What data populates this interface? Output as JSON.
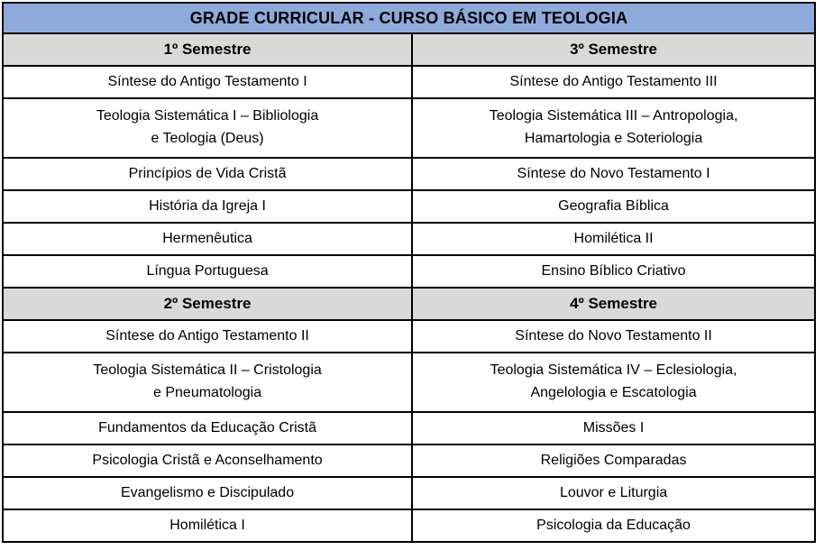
{
  "title": "GRADE CURRICULAR - CURSO BÁSICO EM TEOLOGIA",
  "colors": {
    "title_bg": "#8EAADB",
    "section_bg": "#D9D9D9",
    "cell_bg": "#FFFFFF",
    "border": "#000000",
    "text": "#000000"
  },
  "sections": [
    {
      "left_header": "1º Semestre",
      "right_header": "3º Semestre",
      "rows": [
        {
          "left": "Síntese do Antigo Testamento I",
          "right": "Síntese do Antigo Testamento III"
        },
        {
          "left": "Teologia Sistemática I – Bibliologia\ne Teologia (Deus)",
          "right": "Teologia Sistemática III – Antropologia,\nHamartologia e Soteriologia"
        },
        {
          "left": "Princípios de Vida Cristã",
          "right": "Síntese do Novo Testamento I"
        },
        {
          "left": "História da Igreja I",
          "right": "Geografia Bíblica"
        },
        {
          "left": "Hermenêutica",
          "right": "Homilética II"
        },
        {
          "left": "Língua Portuguesa",
          "right": "Ensino Bíblico Criativo"
        }
      ]
    },
    {
      "left_header": "2º Semestre",
      "right_header": "4º Semestre",
      "rows": [
        {
          "left": "Síntese do Antigo Testamento II",
          "right": "Síntese do Novo Testamento II"
        },
        {
          "left": "Teologia Sistemática II – Cristologia\ne Pneumatologia",
          "right": "Teologia Sistemática IV – Eclesiologia,\nAngelologia e Escatologia"
        },
        {
          "left": "Fundamentos da Educação Cristã",
          "right": "Missões I"
        },
        {
          "left": "Psicologia Cristã e Aconselhamento",
          "right": "Religiões Comparadas"
        },
        {
          "left": "Evangelismo e Discipulado",
          "right": "Louvor e Liturgia"
        },
        {
          "left": "Homilética I",
          "right": "Psicologia da Educação"
        }
      ]
    }
  ]
}
